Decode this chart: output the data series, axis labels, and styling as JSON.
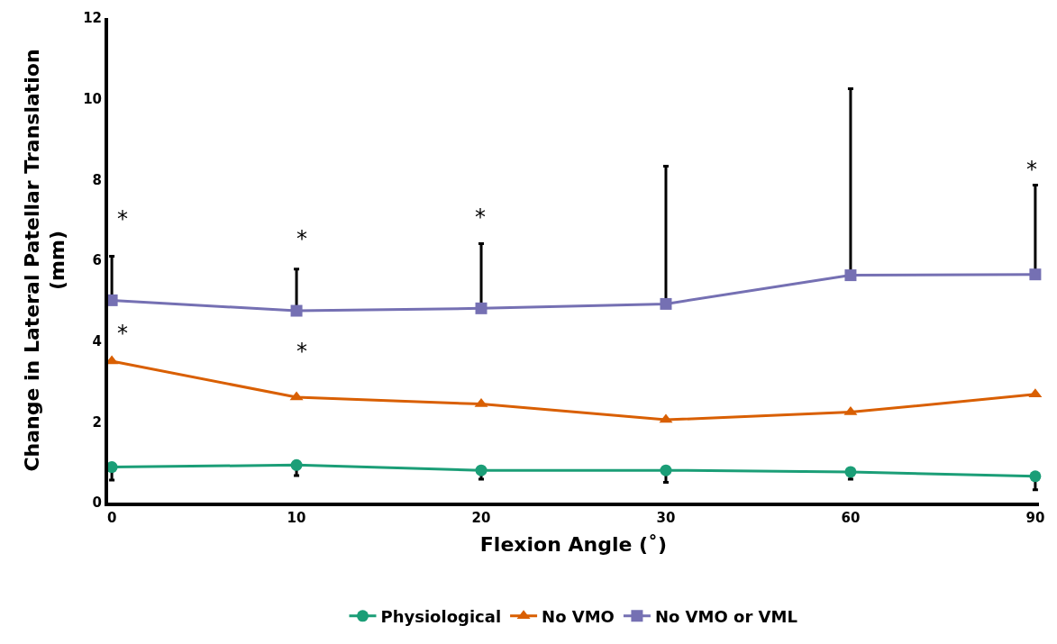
{
  "chart_data": {
    "type": "line",
    "xlabel": "Flexion Angle (˚)",
    "ylabel": "Change in Lateral Patellar Translation (mm)",
    "categories": [
      "0",
      "10",
      "20",
      "30",
      "60",
      "90"
    ],
    "series": [
      {
        "name": "Physiological",
        "color": "#1b9e77",
        "marker": "circle",
        "values": [
          0.88,
          0.93,
          0.8,
          0.8,
          0.76,
          0.65
        ],
        "errors": [
          [
            0.56,
            0.88
          ],
          [
            0.67,
            0.93
          ],
          [
            0.58,
            0.8
          ],
          [
            0.5,
            0.8
          ],
          [
            0.58,
            0.76
          ],
          [
            0.32,
            0.65
          ]
        ]
      },
      {
        "name": "No VMO",
        "color": "#d95f02",
        "marker": "triangle",
        "values": [
          3.5,
          2.61,
          2.44,
          2.05,
          2.24,
          2.68
        ]
      },
      {
        "name": "No VMO or VML",
        "color": "#7570b3",
        "marker": "square",
        "values": [
          5.01,
          4.75,
          4.81,
          4.92,
          5.63,
          5.65
        ],
        "errors": [
          [
            5.01,
            6.1
          ],
          [
            4.75,
            5.78
          ],
          [
            4.81,
            6.41
          ],
          [
            4.92,
            8.33
          ],
          [
            5.63,
            10.25
          ],
          [
            5.65,
            7.86
          ]
        ]
      }
    ],
    "ylim": [
      0,
      12
    ],
    "yticks": [
      0,
      2,
      4,
      6,
      8,
      10,
      12
    ],
    "legend": "bottom",
    "annotations": [
      "*",
      "*",
      "*",
      "*",
      "*",
      "*"
    ]
  }
}
